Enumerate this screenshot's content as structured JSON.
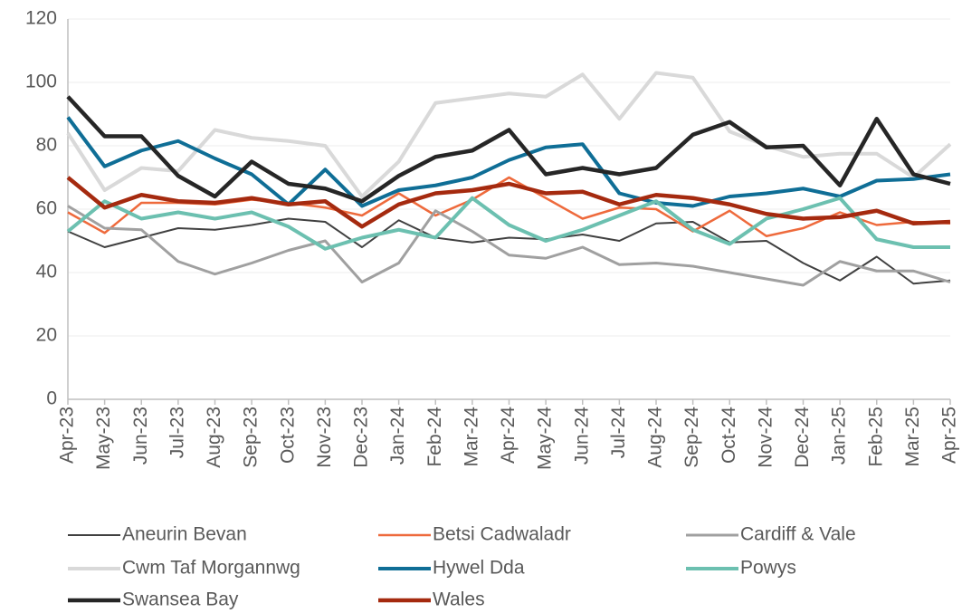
{
  "chart_data": {
    "type": "line",
    "categories": [
      "Apr-23",
      "May-23",
      "Jun-23",
      "Jul-23",
      "Aug-23",
      "Sep-23",
      "Oct-23",
      "Nov-23",
      "Dec-23",
      "Jan-24",
      "Feb-24",
      "Mar-24",
      "Apr-24",
      "May-24",
      "Jun-24",
      "Jul-24",
      "Aug-24",
      "Sep-24",
      "Oct-24",
      "Nov-24",
      "Dec-24",
      "Jan-25",
      "Feb-25",
      "Mar-25",
      "Apr-25"
    ],
    "ylim": [
      0,
      120
    ],
    "yticks": [
      0,
      20,
      40,
      60,
      80,
      100,
      120
    ],
    "grid": true,
    "series": [
      {
        "name": "Aneurin Bevan",
        "color": "#404040",
        "values": [
          53,
          48,
          51,
          54,
          53.5,
          55,
          57,
          56,
          48,
          56.5,
          51,
          49.5,
          51,
          50.5,
          52,
          50,
          55.5,
          56,
          49.5,
          50,
          43,
          37.5,
          45,
          36.5,
          37.5
        ]
      },
      {
        "name": "Betsi Cadwaladr",
        "color": "#ee6a3c",
        "values": [
          59,
          52.5,
          62,
          62,
          61.5,
          63,
          62,
          60.5,
          58,
          65,
          58,
          63,
          70,
          63.5,
          57,
          60.5,
          60,
          53,
          59.5,
          51.5,
          54,
          59,
          55,
          56,
          55.5
        ]
      },
      {
        "name": "Cardiff & Vale",
        "color": "#a0a0a0",
        "values": [
          61,
          54,
          53.5,
          43.5,
          39.5,
          43,
          47,
          50,
          37,
          43,
          59.5,
          53,
          45.5,
          44.5,
          48,
          42.5,
          43,
          42,
          40,
          38,
          36,
          43.5,
          40.5,
          40.5,
          37
        ]
      },
      {
        "name": "Cwm Taf Morgannwg",
        "color": "#d9d9d9",
        "values": [
          84,
          66,
          73,
          72,
          85,
          82.5,
          81.5,
          80,
          64,
          75,
          93.5,
          95,
          96.5,
          95.5,
          102.5,
          88.5,
          103,
          101.5,
          84.5,
          80,
          76.5,
          77.5,
          77.5,
          70,
          80.5
        ]
      },
      {
        "name": "Hywel Dda",
        "color": "#0f6e96",
        "values": [
          89,
          73.5,
          78.5,
          81.5,
          76,
          71,
          61.5,
          72.5,
          61,
          66,
          67.5,
          70,
          75.5,
          79.5,
          80.5,
          65,
          62,
          61,
          64,
          65,
          66.5,
          64,
          69,
          69.5,
          71
        ]
      },
      {
        "name": "Powys",
        "color": "#6cc0b0",
        "values": [
          53,
          62.5,
          57,
          59,
          57,
          59,
          54.5,
          47.5,
          51,
          53.5,
          51,
          63.5,
          55,
          50,
          53.5,
          58,
          62.5,
          53.5,
          49,
          57,
          60,
          63.5,
          50.5,
          48,
          48
        ]
      },
      {
        "name": "Swansea Bay",
        "color": "#262626",
        "values": [
          95.5,
          83,
          83,
          70.5,
          64,
          75,
          68,
          66.5,
          62.5,
          70.5,
          76.5,
          78.5,
          85,
          71,
          73,
          71,
          73,
          83.5,
          87.5,
          79.5,
          80,
          67.5,
          88.5,
          71,
          68
        ]
      },
      {
        "name": "Wales",
        "color": "#a52a0f",
        "values": [
          70,
          60.5,
          64.5,
          62.5,
          62,
          63.5,
          61.5,
          62.5,
          54.5,
          61.5,
          65,
          66,
          68,
          65,
          65.5,
          61.5,
          64.5,
          63.5,
          61.5,
          58.5,
          57,
          57.5,
          59.5,
          55.5,
          56
        ]
      }
    ]
  }
}
